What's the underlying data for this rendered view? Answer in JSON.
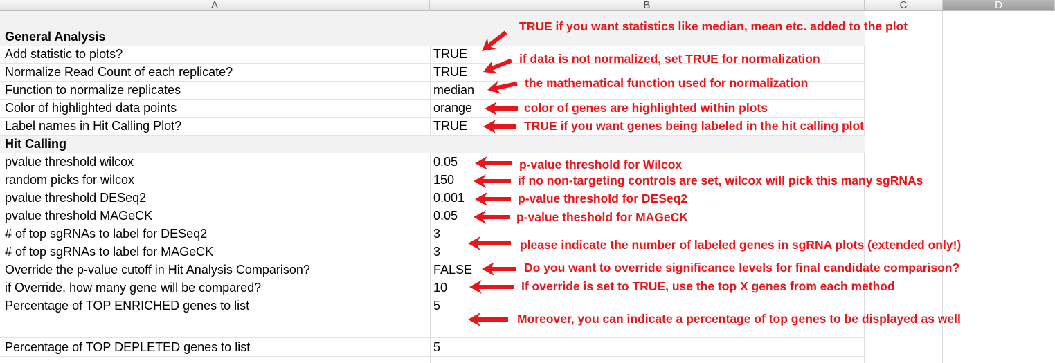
{
  "columns": [
    "A",
    "B",
    "C",
    "D"
  ],
  "rows": [
    {
      "label": "General Analysis",
      "value": "",
      "section": true
    },
    {
      "label": "Add statistic to plots?",
      "value": "TRUE"
    },
    {
      "label": "Normalize Read Count of each replicate?",
      "value": "TRUE"
    },
    {
      "label": "Function to normalize replicates",
      "value": "median"
    },
    {
      "label": "Color of highlighted data points",
      "value": "orange"
    },
    {
      "label": "Label names in Hit Calling Plot?",
      "value": "TRUE"
    },
    {
      "label": "Hit Calling",
      "value": "",
      "section": true
    },
    {
      "label": "pvalue threshold wilcox",
      "value": "0.05"
    },
    {
      "label": "random picks for wilcox",
      "value": "150"
    },
    {
      "label": "pvalue threshold DESeq2",
      "value": "0.001"
    },
    {
      "label": "pvalue threshold MAGeCK",
      "value": "0.05"
    },
    {
      "label": "# of top sgRNAs to label for DESeq2",
      "value": "3"
    },
    {
      "label": "# of top sgRNAs to label for MAGeCK",
      "value": "3"
    },
    {
      "label": "Override the p-value cutoff in Hit Analysis Comparison?",
      "value": "FALSE"
    },
    {
      "label": "if Override, how many gene will be compared?",
      "value": "10"
    },
    {
      "label": "Percentage of TOP ENRICHED genes to list",
      "value": "5"
    },
    {
      "label": "",
      "value": ""
    },
    {
      "label": "Percentage of TOP DEPLETED genes to list",
      "value": "5"
    }
  ],
  "annotations": [
    "TRUE if you want statistics like median, mean etc. added to the plot",
    "if data is not normalized, set TRUE for normalization",
    "the mathematical function used for normalization",
    "color of genes are highlighted within plots",
    "TRUE if you want genes being labeled in the hit calling plot",
    "p-value threshold for Wilcox",
    "if no non-targeting controls are set, wilcox will pick this many sgRNAs",
    "p-value threshold for DESeq2",
    "p-value theshold for MAGeCK",
    "please indicate the number of labeled genes in sgRNA plots (extended only!)",
    "Do you want to override significance levels for final candidate comparison?",
    "If override is set to TRUE, use the top X genes from each method",
    "Moreover, you can indicate a percentage of top genes to be displayed as well"
  ],
  "colors": {
    "annotation": "#e8151b",
    "section_bg": "#f2f2f2"
  }
}
